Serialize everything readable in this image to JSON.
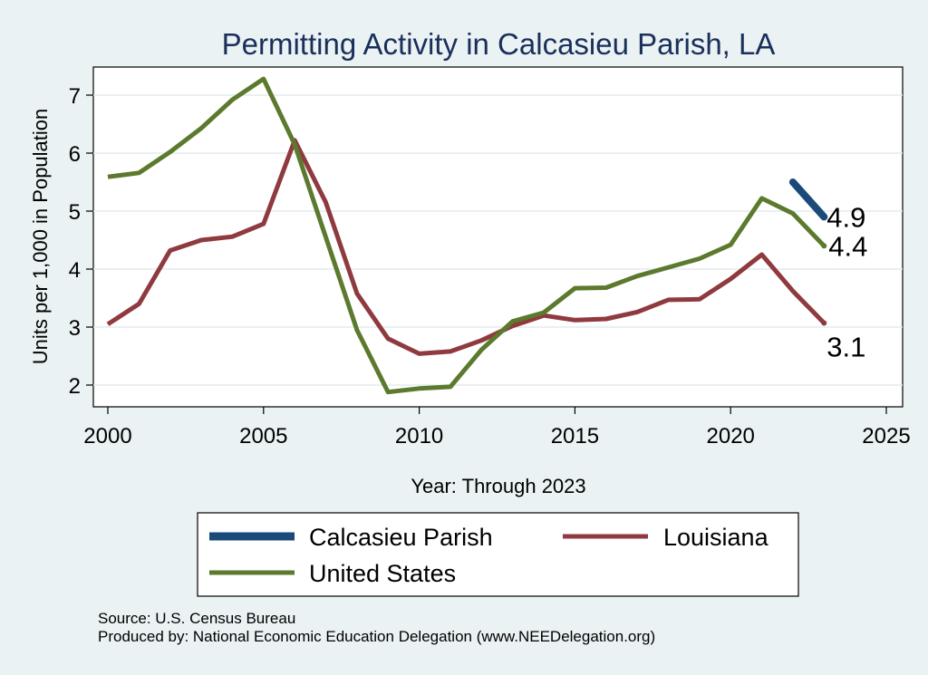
{
  "chart_data": {
    "type": "line",
    "title": "Permitting Activity in Calcasieu Parish, LA",
    "xlabel": "Year: Through 2023",
    "ylabel": "Units per 1,000 in Population",
    "xlim": [
      2000,
      2025
    ],
    "ylim": [
      1.7,
      7.5
    ],
    "xticks": [
      2000,
      2005,
      2010,
      2015,
      2020,
      2025
    ],
    "yticks": [
      2,
      3,
      4,
      5,
      6,
      7
    ],
    "grid": true,
    "legend_position": "bottom",
    "series": [
      {
        "name": "Calcasieu Parish",
        "color": "#1a4a7a",
        "x": [
          2022,
          2023
        ],
        "values": [
          5.5,
          4.9
        ],
        "end_label": "4.9"
      },
      {
        "name": "Louisiana",
        "color": "#8f3a3f",
        "x": [
          2000,
          2001,
          2002,
          2003,
          2004,
          2005,
          2006,
          2007,
          2008,
          2009,
          2010,
          2011,
          2012,
          2013,
          2014,
          2015,
          2016,
          2017,
          2018,
          2019,
          2020,
          2021,
          2022,
          2023
        ],
        "values": [
          3.05,
          3.4,
          4.32,
          4.5,
          4.56,
          4.78,
          6.22,
          5.15,
          3.58,
          2.8,
          2.54,
          2.58,
          2.77,
          3.02,
          3.2,
          3.12,
          3.14,
          3.26,
          3.47,
          3.48,
          3.83,
          4.25,
          3.62,
          3.07
        ],
        "end_label": "3.1"
      },
      {
        "name": "United States",
        "color": "#5c7a2e",
        "x": [
          2000,
          2001,
          2002,
          2003,
          2004,
          2005,
          2006,
          2007,
          2008,
          2009,
          2010,
          2011,
          2012,
          2013,
          2014,
          2015,
          2016,
          2017,
          2018,
          2019,
          2020,
          2021,
          2022,
          2023
        ],
        "values": [
          5.59,
          5.66,
          6.02,
          6.43,
          6.92,
          7.28,
          6.15,
          4.55,
          2.95,
          1.88,
          1.94,
          1.97,
          2.61,
          3.1,
          3.25,
          3.67,
          3.68,
          3.88,
          4.03,
          4.18,
          4.42,
          5.22,
          4.96,
          4.4
        ],
        "end_label": "4.4"
      }
    ]
  },
  "legend": {
    "items": [
      "Calcasieu Parish",
      "Louisiana",
      "United States"
    ]
  },
  "footer": {
    "source": "Source: U.S. Census Bureau",
    "produced_by": "Produced by: National Economic Education Delegation (www.NEEDelegation.org)"
  }
}
